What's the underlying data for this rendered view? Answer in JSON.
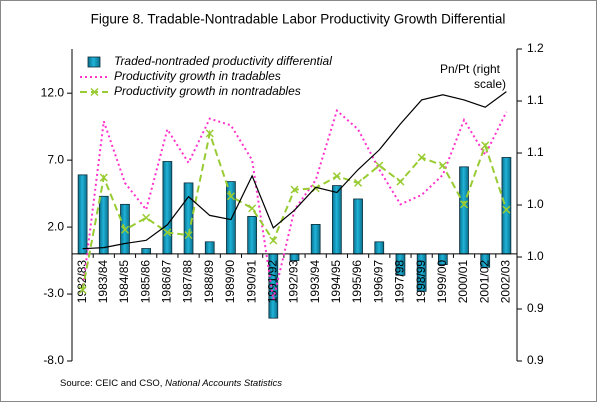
{
  "chart_data": {
    "type": "bar",
    "title": "Figure 8. Tradable-Nontradable Labor Productivity Growth Differential",
    "categories": [
      "1982/83",
      "1983/84",
      "1984/85",
      "1985/86",
      "1986/87",
      "1987/88",
      "1988/89",
      "1989/90",
      "1990/91",
      "1991/92",
      "1992/93",
      "1993/94",
      "1994/95",
      "1995/96",
      "1996/97",
      "1997/98",
      "1998/99",
      "1999/00",
      "2000/01",
      "2001/02",
      "2002/03"
    ],
    "series": [
      {
        "name": "Traded-nontraded productivity differential",
        "type": "bar",
        "color": "#1fb3d8",
        "values": [
          5.9,
          4.3,
          3.7,
          0.4,
          6.9,
          5.3,
          0.9,
          5.4,
          2.8,
          -4.8,
          -0.5,
          2.2,
          5.1,
          4.1,
          0.9,
          -1.6,
          -2.8,
          -0.8,
          6.5,
          -1.0,
          7.2
        ]
      },
      {
        "name": "Productivity growth in tradables",
        "type": "line",
        "color": "#ff33cc",
        "dash": "dotted",
        "values": [
          -2.7,
          9.9,
          5.3,
          3.3,
          9.3,
          6.8,
          10.1,
          9.6,
          7.0,
          -3.4,
          3.3,
          5.5,
          10.7,
          9.3,
          6.3,
          3.7,
          4.4,
          5.9,
          10.0,
          7.4,
          10.6
        ]
      },
      {
        "name": "Productivity growth in nontradables",
        "type": "line",
        "color": "#99cc33",
        "dash": "dashed",
        "marker": "x",
        "values": [
          -2.7,
          5.7,
          1.8,
          2.7,
          1.6,
          1.4,
          9.0,
          4.3,
          3.4,
          1.0,
          4.8,
          4.9,
          5.8,
          5.3,
          6.6,
          5.4,
          7.2,
          6.6,
          3.7,
          8.1,
          3.3
        ]
      },
      {
        "type": "line",
        "color": "#000000",
        "axis": "y2",
        "values": [
          1.008,
          1.009,
          1.013,
          1.016,
          1.031,
          1.058,
          1.04,
          1.036,
          1.078,
          1.028,
          1.045,
          1.067,
          1.062,
          1.084,
          1.103,
          1.128,
          1.151,
          1.156,
          1.151,
          1.144,
          1.159
        ]
      }
    ],
    "ylim": [
      -8,
      15.3
    ],
    "yticks": [
      {
        "value": -8,
        "label": "-8.0"
      },
      {
        "value": -3,
        "label": "-3.0"
      },
      {
        "value": 2,
        "label": "2.0"
      },
      {
        "value": 7,
        "label": "7.0"
      },
      {
        "value": 12,
        "label": "12.0"
      }
    ],
    "y2lim": [
      0.9,
      1.2
    ],
    "y2ticks": [
      {
        "value": 0.9,
        "label": "0.9"
      },
      {
        "value": 0.95,
        "label": "0.9"
      },
      {
        "value": 1.0,
        "label": "1.0"
      },
      {
        "value": 1.05,
        "label": "1.0"
      },
      {
        "value": 1.1,
        "label": "1.1"
      },
      {
        "value": 1.15,
        "label": "1.1"
      },
      {
        "value": 1.2,
        "label": "1.2"
      }
    ],
    "annotations": [
      "Pn/Pt (right",
      "scale)"
    ],
    "legend": "top-left",
    "source": {
      "text": "Source: CEIC and CSO,",
      "italic": "National Accounts Statistics"
    }
  }
}
